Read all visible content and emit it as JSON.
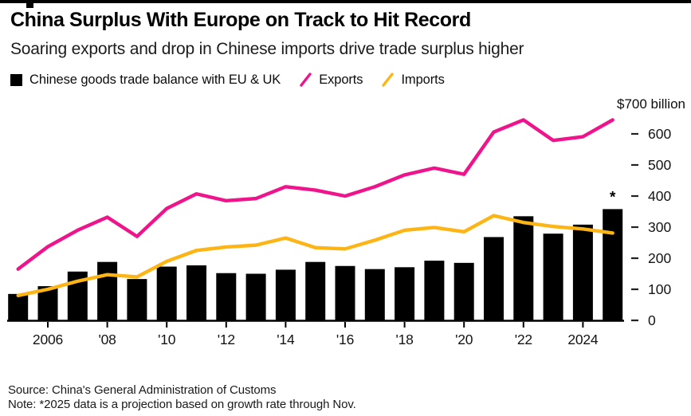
{
  "header": {
    "title": "China Surplus With Europe on Track to Hit Record",
    "subtitle": "Soaring exports and drop in Chinese imports drive trade surplus higher"
  },
  "legend": {
    "items": [
      {
        "label": "Chinese goods trade balance with EU & UK",
        "marker": "square",
        "color": "#000000"
      },
      {
        "label": "Exports",
        "marker": "slash",
        "color": "#f0148c"
      },
      {
        "label": "Imports",
        "marker": "slash",
        "color": "#fcb514"
      }
    ]
  },
  "chart_data": {
    "type": "bar+line combo",
    "title": "China Surplus With Europe on Track to Hit Record",
    "years": [
      2005,
      2006,
      2007,
      2008,
      2009,
      2010,
      2011,
      2012,
      2013,
      2014,
      2015,
      2016,
      2017,
      2018,
      2019,
      2020,
      2021,
      2022,
      2023,
      2024,
      2025
    ],
    "series": [
      {
        "name": "Chinese goods trade balance with EU & UK",
        "type": "bar",
        "color": "#000000",
        "values": [
          85,
          110,
          157,
          188,
          133,
          173,
          177,
          152,
          150,
          163,
          188,
          175,
          165,
          171,
          192,
          185,
          268,
          335,
          279,
          308,
          358
        ]
      },
      {
        "name": "Exports",
        "type": "line",
        "color": "#f0148c",
        "values": [
          165,
          237,
          290,
          332,
          270,
          360,
          407,
          385,
          392,
          430,
          419,
          400,
          430,
          468,
          490,
          470,
          606,
          645,
          579,
          591,
          645
        ]
      },
      {
        "name": "Imports",
        "type": "line",
        "color": "#fcb514",
        "values": [
          80,
          100,
          126,
          147,
          140,
          190,
          225,
          236,
          242,
          265,
          234,
          230,
          258,
          290,
          299,
          285,
          337,
          315,
          302,
          294,
          281
        ]
      }
    ],
    "unit_label": "$700 billion",
    "ylim": [
      0,
      700
    ],
    "yticks": [
      600,
      500,
      400,
      300,
      200,
      100,
      0
    ],
    "ytick_dash": "–",
    "xticks": [
      {
        "year": 2006,
        "label": "2006"
      },
      {
        "year": 2008,
        "label": "'08"
      },
      {
        "year": 2010,
        "label": "'10"
      },
      {
        "year": 2012,
        "label": "'12"
      },
      {
        "year": 2014,
        "label": "'14"
      },
      {
        "year": 2016,
        "label": "'16"
      },
      {
        "year": 2018,
        "label": "'18"
      },
      {
        "year": 2020,
        "label": "'20"
      },
      {
        "year": 2022,
        "label": "'22"
      },
      {
        "year": 2024,
        "label": "2024"
      }
    ],
    "annotation": {
      "text": "*",
      "year": 2025
    },
    "grid": false,
    "legend_position": "top"
  },
  "footer": {
    "source": "Source: China's General Administration of Customs",
    "note": "Note: *2025 data is a projection based on growth rate through Nov."
  }
}
